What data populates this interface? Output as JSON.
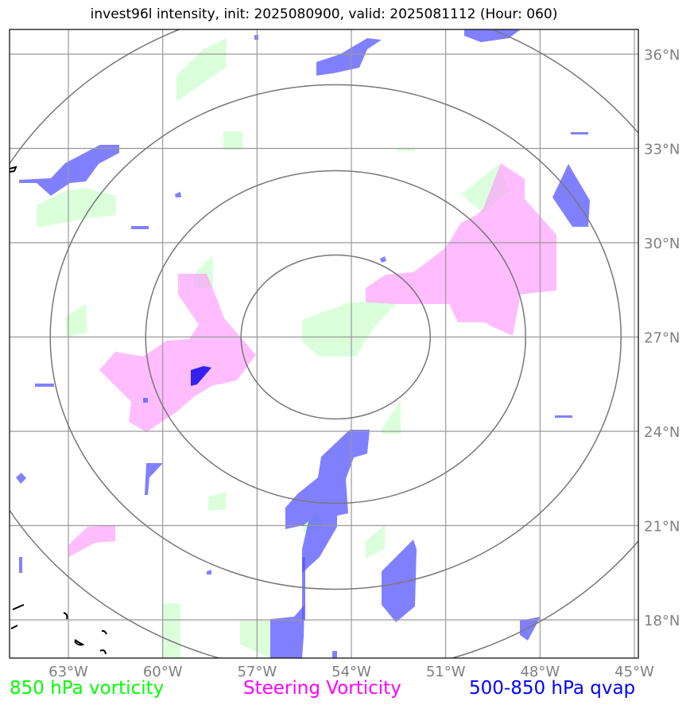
{
  "title": "invest96l intensity, init: 2025080900, valid: 2025081112 (Hour: 060)",
  "lon_labels": [
    "63°W",
    "60°W",
    "57°W",
    "54°W",
    "51°W",
    "48°W",
    "45°W"
  ],
  "lat_labels": [
    "36°N",
    "33°N",
    "30°N",
    "27°N",
    "24°N",
    "21°N",
    "18°N"
  ],
  "legend": {
    "vort850": "850 hPa vorticity",
    "steering": "Steering Vorticity",
    "qvap": "500-850 hPa qvap"
  },
  "colors": {
    "vort850": "#00ff00",
    "steering": "#ff00ff",
    "qvap": "#0000ff",
    "grid": "#808080"
  },
  "storm_center": {
    "lat": 27,
    "lon": -54.5
  }
}
